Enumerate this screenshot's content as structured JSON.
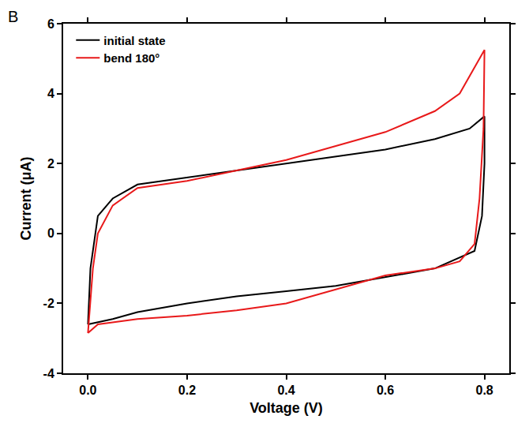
{
  "chart_data": {
    "type": "line",
    "panel_label": "B",
    "x_label": "Voltage (V)",
    "y_label": "Current (μA)",
    "xlim": [
      -0.05,
      0.85
    ],
    "ylim": [
      -4,
      6
    ],
    "xticks": [
      {
        "value": 0,
        "label": "0.0"
      },
      0.2,
      0.4,
      0.6,
      0.8
    ],
    "yticks": [
      -4,
      -2,
      0,
      2,
      4,
      6
    ],
    "grid": false,
    "legend": "upper left",
    "series": [
      {
        "name": "initial state",
        "color": "#000000",
        "x": [
          0.0,
          0.005,
          0.02,
          0.05,
          0.1,
          0.2,
          0.3,
          0.4,
          0.5,
          0.6,
          0.7,
          0.77,
          0.8,
          0.8,
          0.795,
          0.78,
          0.7,
          0.6,
          0.5,
          0.4,
          0.3,
          0.2,
          0.1,
          0.05,
          0.0
        ],
        "values": [
          -2.6,
          -1.0,
          0.5,
          1.0,
          1.4,
          1.6,
          1.8,
          2.0,
          2.2,
          2.4,
          2.7,
          3.0,
          3.35,
          2.0,
          0.5,
          -0.5,
          -1.0,
          -1.25,
          -1.5,
          -1.65,
          -1.8,
          -2.0,
          -2.25,
          -2.45,
          -2.6
        ]
      },
      {
        "name": "bend 180°",
        "color": "#e8191a",
        "x": [
          0.0,
          0.01,
          0.02,
          0.05,
          0.1,
          0.2,
          0.3,
          0.4,
          0.5,
          0.6,
          0.7,
          0.75,
          0.8,
          0.798,
          0.79,
          0.78,
          0.75,
          0.7,
          0.6,
          0.5,
          0.4,
          0.3,
          0.2,
          0.1,
          0.02,
          0.0
        ],
        "values": [
          -2.85,
          -1.0,
          0.0,
          0.8,
          1.3,
          1.5,
          1.8,
          2.1,
          2.5,
          2.9,
          3.5,
          4.0,
          5.25,
          3.0,
          1.0,
          -0.3,
          -0.8,
          -1.0,
          -1.2,
          -1.6,
          -2.0,
          -2.2,
          -2.35,
          -2.45,
          -2.6,
          -2.85
        ]
      }
    ]
  }
}
